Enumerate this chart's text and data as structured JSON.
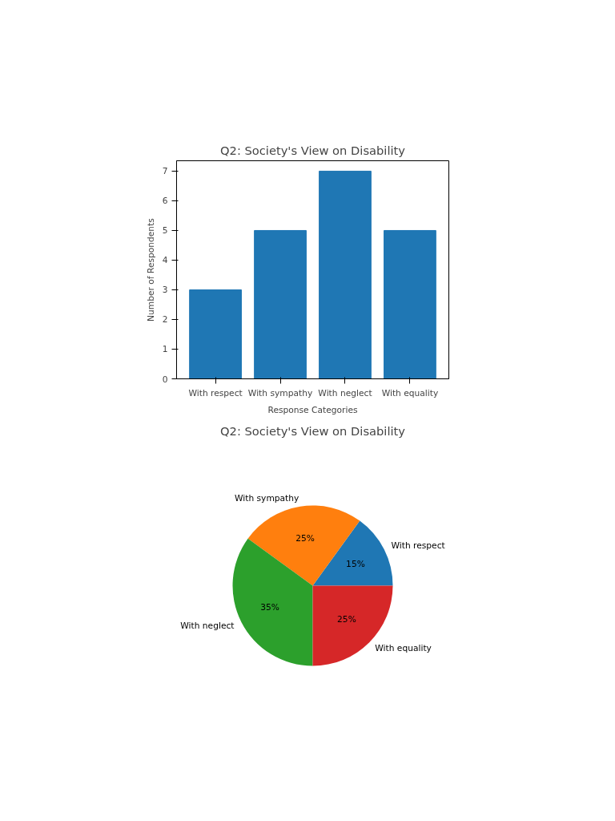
{
  "chart_data": [
    {
      "type": "bar",
      "title": "Q2: Society's View on Disability",
      "xlabel": "Response Categories",
      "ylabel": "Number of Respondents",
      "categories": [
        "With respect",
        "With sympathy",
        "With neglect",
        "With equality"
      ],
      "values": [
        3,
        5,
        7,
        5
      ],
      "color": "#1f77b4",
      "ylim": [
        0,
        7.35
      ],
      "yticks": [
        0,
        1,
        2,
        3,
        4,
        5,
        6,
        7
      ],
      "grid": false
    },
    {
      "type": "pie",
      "title": "Q2: Society's View on Disability",
      "categories": [
        "With respect",
        "With sympathy",
        "With neglect",
        "With equality"
      ],
      "values": [
        15,
        25,
        35,
        25
      ],
      "colors": [
        "#1f77b4",
        "#ff7f0e",
        "#2ca02c",
        "#d62728"
      ],
      "value_labels": [
        "15%",
        "25%",
        "35%",
        "25%"
      ]
    }
  ]
}
